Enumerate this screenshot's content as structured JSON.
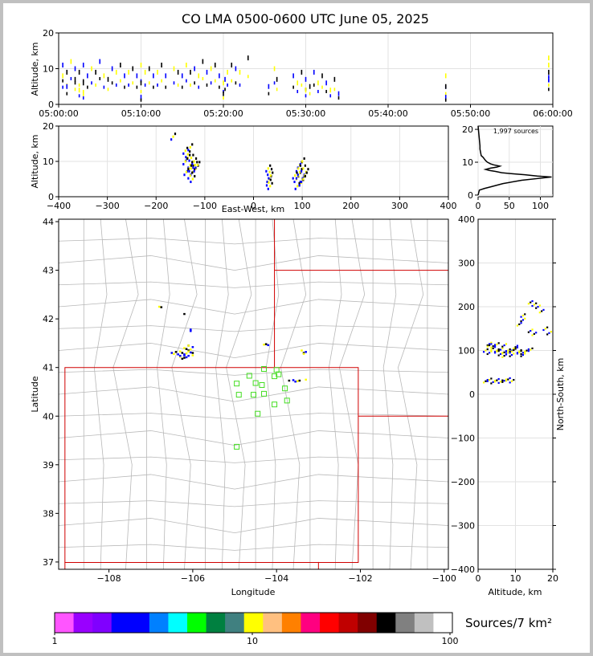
{
  "title": "CO LMA 0500-0600 UTC June 05, 2025",
  "colors": {
    "state_line": "#d00000",
    "county_line": "#b8b8b8",
    "station": "#44dd22"
  },
  "chart_data": [
    {
      "name": "time_altitude",
      "type": "scatter",
      "ylabel": "Altitude, km",
      "ylim": [
        0,
        20
      ],
      "yticks": [
        "0",
        "10",
        "20"
      ],
      "xticks": [
        "05:00:00",
        "05:10:00",
        "05:20:00",
        "05:30:00",
        "05:40:00",
        "05:50:00",
        "06:00:00"
      ],
      "xlim_minutes": [
        0,
        60
      ],
      "series": [
        {
          "x": [
            0.5,
            0.5,
            1,
            1,
            1.5,
            2,
            2,
            2.5,
            2.5,
            3,
            3,
            3,
            3.5,
            4,
            4.5,
            5,
            5.5,
            6,
            6.5,
            7,
            7.5,
            8,
            8.5,
            9,
            9.5,
            10,
            10,
            10,
            10.5,
            11,
            11.5,
            12,
            12.5,
            13,
            14,
            14.5,
            15,
            15.5,
            16,
            16.5,
            17,
            17.5,
            18,
            18.5,
            19,
            19.5,
            20,
            20,
            20.2,
            20.5,
            21,
            21.5,
            22,
            23,
            25.5,
            26.2,
            26.5,
            28.5,
            29,
            29.5,
            30,
            30,
            30.5,
            31,
            31.5,
            32,
            32.5,
            33,
            33.5,
            34,
            47,
            47,
            47,
            59.5,
            59.5,
            59.5,
            59.5
          ],
          "y": [
            11,
            8,
            9,
            5,
            12,
            7,
            10,
            4,
            9,
            11,
            3,
            6,
            8,
            10,
            9,
            12,
            8,
            7,
            10,
            9,
            11,
            8,
            9,
            10,
            8,
            11,
            6,
            2,
            9,
            10,
            8,
            9,
            11,
            8,
            10,
            9,
            8,
            11,
            9,
            10,
            8,
            12,
            9,
            10,
            11,
            8,
            6,
            3,
            7,
            9,
            11,
            10,
            9,
            13,
            5,
            10,
            7,
            8,
            6,
            9,
            7,
            4,
            5,
            9,
            6,
            8,
            6,
            4,
            7,
            3,
            8,
            5,
            2,
            11,
            9,
            7,
            13
          ]
        }
      ]
    },
    {
      "name": "ew_altitude",
      "type": "scatter",
      "xlabel": "East-West, km",
      "ylabel": "Altitude, km",
      "xlim": [
        -400,
        400
      ],
      "ylim": [
        0,
        20
      ],
      "xticks": [
        "-400",
        "-300",
        "-200",
        "-100",
        "0",
        "100",
        "200",
        "300",
        "400"
      ],
      "yticks": [
        "0",
        "10",
        "20"
      ],
      "series": [
        {
          "x": [
            -165,
            -140,
            -135,
            -130,
            -128,
            -125,
            -122,
            -120,
            -130,
            -135,
            -125,
            -130,
            -128,
            -132,
            -140,
            -118,
            -115,
            -138,
            32,
            33,
            35,
            34,
            30,
            31,
            88,
            92,
            95,
            98,
            100,
            102,
            105,
            108,
            90,
            95,
            100,
            105,
            98,
            92,
            102,
            85
          ],
          "y": [
            17,
            13,
            11,
            9,
            8,
            7,
            10,
            9,
            6,
            12,
            5,
            14,
            11,
            8,
            10,
            8,
            9,
            7,
            5,
            7,
            6,
            3,
            8,
            4,
            5,
            6,
            7,
            4,
            5,
            8,
            6,
            7,
            3,
            9,
            10,
            6,
            4,
            8,
            5,
            6
          ]
        }
      ]
    },
    {
      "name": "altitude_histogram",
      "type": "line",
      "title": "1,997 sources",
      "xlim": [
        0,
        120
      ],
      "ylim": [
        -0.5,
        21
      ],
      "xticks": [
        "0",
        "50",
        "100"
      ],
      "yticks": [
        "0",
        "10",
        "20"
      ],
      "x": [
        0,
        1,
        2,
        3,
        3,
        4,
        5,
        8,
        10,
        12,
        15,
        20,
        25,
        35,
        30,
        20,
        12,
        18,
        28,
        38,
        55,
        75,
        95,
        118,
        70,
        40,
        20,
        10,
        2,
        0
      ],
      "y": [
        21,
        19,
        17,
        15,
        14,
        13,
        12,
        11.5,
        11,
        10.5,
        10,
        9.5,
        9.2,
        8.8,
        8.5,
        8.2,
        7.8,
        7.5,
        7.2,
        6.8,
        6.5,
        6.2,
        5.8,
        5.5,
        4.5,
        3.5,
        2.5,
        2,
        1.5,
        0
      ]
    },
    {
      "name": "plan_view",
      "type": "scatter",
      "xlabel": "Longitude",
      "ylabel": "Latitude",
      "xlim": [
        -109.2,
        -99.9
      ],
      "ylim": [
        36.85,
        44.05
      ],
      "xticks": [
        "−108",
        "−106",
        "−104",
        "−102",
        "−100"
      ],
      "yticks": [
        "37",
        "38",
        "39",
        "40",
        "41",
        "42",
        "43",
        "44"
      ],
      "series": [
        {
          "lon": [
            -106.5,
            -106.45,
            -106.4,
            -106.35,
            -106.3,
            -106.25,
            -106.2,
            -106.15,
            -106.1,
            -106.05,
            -106.3,
            -106.2,
            -106.1,
            -106.2,
            -106.15,
            -106.0,
            -106.05,
            -106.1,
            -106.2,
            -106.1,
            -106.25,
            -106.15,
            -106.0,
            -106.2,
            -106.05,
            -106.8,
            -106.75,
            -106.05,
            -106.1,
            -106.0,
            -106.3,
            -104.3,
            -104.25,
            -104.2,
            -103.4,
            -103.35,
            -103.3,
            -103.35,
            -103.7,
            -103.6,
            -103.5,
            -103.45,
            -103.55,
            -103.3
          ],
          "lat": [
            41.3,
            41.28,
            41.32,
            41.27,
            41.33,
            41.3,
            41.25,
            41.29,
            41.35,
            41.31,
            41.22,
            41.2,
            41.24,
            41.4,
            41.38,
            41.42,
            41.37,
            41.45,
            41.27,
            41.33,
            41.18,
            41.21,
            41.25,
            42.1,
            41.75,
            42.25,
            42.24,
            41.78,
            41.45,
            41.3,
            41.24,
            41.47,
            41.48,
            41.46,
            41.35,
            41.3,
            41.32,
            41.28,
            40.73,
            40.74,
            40.72,
            40.73,
            40.71,
            40.75
          ]
        }
      ],
      "stations": {
        "lon": [
          -104.95,
          -104.65,
          -104.5,
          -104.35,
          -104.05,
          -103.95,
          -103.8,
          -104.9,
          -104.55,
          -104.3,
          -103.75,
          -104.45,
          -104.05,
          -104.95,
          -104.3,
          -104.0
        ],
        "lat": [
          40.67,
          40.83,
          40.68,
          40.64,
          40.82,
          40.86,
          40.57,
          40.44,
          40.44,
          40.46,
          40.32,
          40.05,
          40.24,
          39.37,
          40.97,
          40.95
        ]
      }
    },
    {
      "name": "altitude_ns",
      "type": "scatter",
      "xlabel": "Altitude, km",
      "ylabel": "North-South, km",
      "xlim": [
        0,
        20
      ],
      "ylim": [
        -400,
        400
      ],
      "xticks": [
        "0",
        "10",
        "20"
      ],
      "yticks": [
        "−400",
        "−300",
        "−200",
        "−100",
        "0",
        "100",
        "200",
        "300",
        "400"
      ],
      "series": [
        {
          "x": [
            2,
            3,
            4,
            5,
            6,
            7,
            8,
            9,
            10,
            11,
            12,
            13,
            14,
            3,
            4,
            5,
            6,
            7,
            8,
            9,
            10,
            11,
            12,
            3,
            5,
            7,
            2,
            3,
            4,
            5,
            6,
            7,
            8,
            9,
            12,
            14,
            15,
            16,
            17,
            18,
            19,
            11,
            12,
            14,
            15,
            9
          ],
          "y": [
            100,
            95,
            105,
            98,
            102,
            96,
            100,
            90,
            104,
            98,
            95,
            100,
            102,
            115,
            110,
            100,
            92,
            88,
            95,
            100,
            108,
            96,
            90,
            112,
            114,
            112,
            30,
            33,
            28,
            32,
            29,
            31,
            34,
            30,
            170,
            210,
            205,
            200,
            190,
            150,
            140,
            160,
            180,
            145,
            138,
            98
          ]
        }
      ]
    },
    {
      "name": "colorbar",
      "type": "heatmap",
      "title": "Sources/7 km²",
      "tick_labels": [
        "1",
        "10",
        "100"
      ],
      "colors": [
        "#ff55ff",
        "#9900ff",
        "#8000ff",
        "#0000ff",
        "#0000ff",
        "#0080ff",
        "#00ffff",
        "#00ff00",
        "#008040",
        "#408080",
        "#ffff00",
        "#ffc080",
        "#ff8000",
        "#ff0080",
        "#ff0000",
        "#c00000",
        "#800000",
        "#000000",
        "#808080",
        "#c0c0c0",
        "#ffffff"
      ]
    }
  ]
}
